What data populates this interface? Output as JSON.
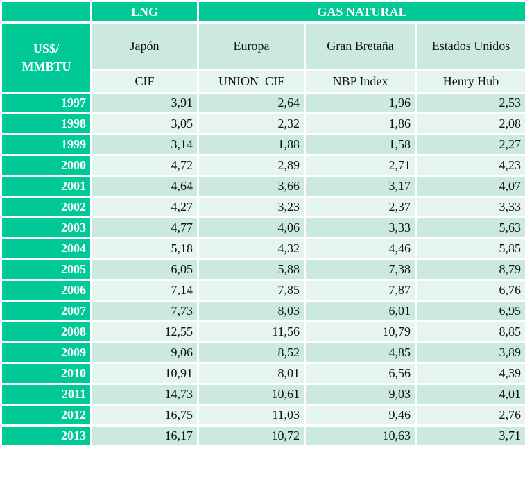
{
  "header": {
    "unit_label": "US$/ MMBTU",
    "groups": [
      {
        "label": "LNG",
        "colspan": 1
      },
      {
        "label": "GAS NATURAL",
        "colspan": 3
      }
    ],
    "columns": [
      {
        "region": "Japón",
        "index": "CIF"
      },
      {
        "region": "Europa",
        "index": "UNION  CIF"
      },
      {
        "region": "Gran Bretaña",
        "index": "NBP Index"
      },
      {
        "region": "Estados Unidos",
        "index": "Henry Hub"
      }
    ]
  },
  "rows": [
    {
      "year": "1997",
      "values": [
        "3,91",
        "2,64",
        "1,96",
        "2,53"
      ]
    },
    {
      "year": "1998",
      "values": [
        "3,05",
        "2,32",
        "1,86",
        "2,08"
      ]
    },
    {
      "year": "1999",
      "values": [
        "3,14",
        "1,88",
        "1,58",
        "2,27"
      ]
    },
    {
      "year": "2000",
      "values": [
        "4,72",
        "2,89",
        "2,71",
        "4,23"
      ]
    },
    {
      "year": "2001",
      "values": [
        "4,64",
        "3,66",
        "3,17",
        "4,07"
      ]
    },
    {
      "year": "2002",
      "values": [
        "4,27",
        "3,23",
        "2,37",
        "3,33"
      ]
    },
    {
      "year": "2003",
      "values": [
        "4,77",
        "4,06",
        "3,33",
        "5,63"
      ]
    },
    {
      "year": "2004",
      "values": [
        "5,18",
        "4,32",
        "4,46",
        "5,85"
      ]
    },
    {
      "year": "2005",
      "values": [
        "6,05",
        "5,88",
        "7,38",
        "8,79"
      ]
    },
    {
      "year": "2006",
      "values": [
        "7,14",
        "7,85",
        "7,87",
        "6,76"
      ]
    },
    {
      "year": "2007",
      "values": [
        "7,73",
        "8,03",
        "6,01",
        "6,95"
      ]
    },
    {
      "year": "2008",
      "values": [
        "12,55",
        "11,56",
        "10,79",
        "8,85"
      ]
    },
    {
      "year": "2009",
      "values": [
        "9,06",
        "8,52",
        "4,85",
        "3,89"
      ]
    },
    {
      "year": "2010",
      "values": [
        "10,91",
        "8,01",
        "6,56",
        "4,39"
      ]
    },
    {
      "year": "2011",
      "values": [
        "14,73",
        "10,61",
        "9,03",
        "4,01"
      ]
    },
    {
      "year": "2012",
      "values": [
        "16,75",
        "11,03",
        "9,46",
        "2,76"
      ]
    },
    {
      "year": "2013",
      "values": [
        "16,17",
        "10,72",
        "10,63",
        "3,71"
      ]
    }
  ],
  "colors": {
    "header_teal": "#00c896",
    "band_dark": "#cbe9dd",
    "band_light": "#e6f4ee"
  }
}
